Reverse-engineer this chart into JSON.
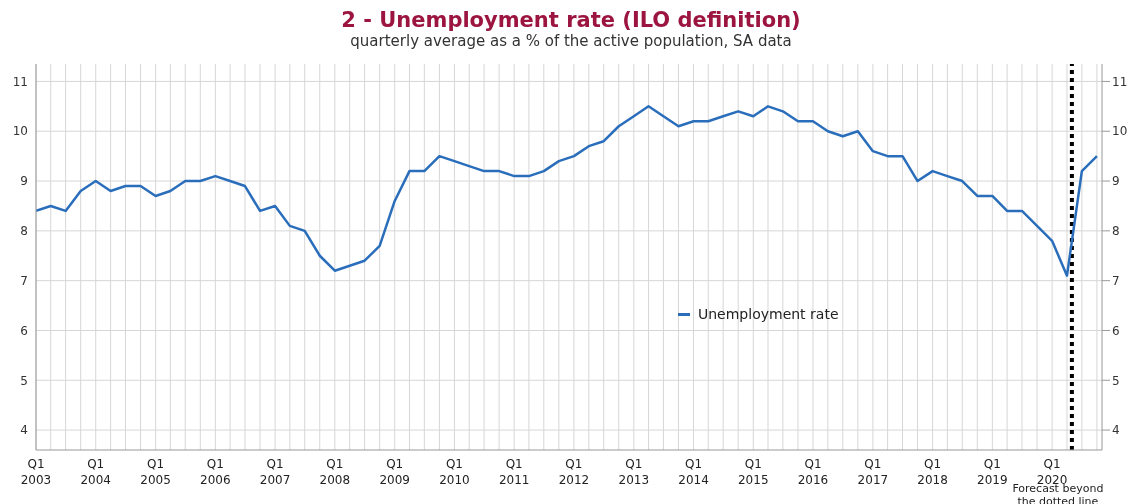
{
  "chart_data": {
    "type": "line",
    "title": "2 - Unemployment rate (ILO definition)",
    "subtitle": "quarterly average as a % of the active population, SA data",
    "x": [
      "2003-01",
      "2003-04",
      "2003-07",
      "2003-10",
      "2004-01",
      "2004-04",
      "2004-07",
      "2004-10",
      "2005-01",
      "2005-04",
      "2005-07",
      "2005-10",
      "2006-01",
      "2006-04",
      "2006-07",
      "2006-10",
      "2007-01",
      "2007-04",
      "2007-07",
      "2007-10",
      "2008-01",
      "2008-04",
      "2008-07",
      "2008-10",
      "2009-01",
      "2009-04",
      "2009-07",
      "2009-10",
      "2010-01",
      "2010-04",
      "2010-07",
      "2010-10",
      "2011-01",
      "2011-04",
      "2011-07",
      "2011-10",
      "2012-01",
      "2012-04",
      "2012-07",
      "2012-10",
      "2013-01",
      "2013-04",
      "2013-07",
      "2013-10",
      "2014-01",
      "2014-04",
      "2014-07",
      "2014-10",
      "2015-01",
      "2015-04",
      "2015-07",
      "2015-10",
      "2016-01",
      "2016-04",
      "2016-07",
      "2016-10",
      "2017-01",
      "2017-04",
      "2017-07",
      "2017-10",
      "2018-01",
      "2018-04",
      "2018-07",
      "2018-10",
      "2019-01",
      "2019-04",
      "2019-07",
      "2019-10",
      "2020-01",
      "2020-04",
      "2020-07",
      "2020-10"
    ],
    "series": [
      {
        "name": "Unemployment rate",
        "color": "#2a6ebb",
        "values": [
          8.4,
          8.5,
          8.4,
          8.8,
          9.0,
          8.8,
          8.9,
          8.9,
          8.7,
          8.8,
          9.0,
          9.0,
          9.1,
          9.0,
          8.9,
          8.4,
          8.5,
          8.1,
          8.0,
          7.5,
          7.2,
          7.3,
          7.4,
          7.7,
          8.6,
          9.2,
          9.2,
          9.5,
          9.4,
          9.3,
          9.2,
          9.2,
          9.1,
          9.1,
          9.2,
          9.4,
          9.5,
          9.7,
          9.8,
          10.1,
          10.3,
          10.5,
          10.3,
          10.1,
          10.2,
          10.2,
          10.3,
          10.4,
          10.3,
          10.5,
          10.4,
          10.2,
          10.2,
          10.0,
          9.9,
          10.0,
          9.6,
          9.5,
          9.5,
          9.0,
          9.2,
          9.1,
          9.0,
          8.7,
          8.7,
          8.4,
          8.4,
          8.1,
          7.8,
          7.1,
          9.2,
          9.5
        ]
      }
    ],
    "xlim": [
      "2003-01",
      "2020-11"
    ],
    "xticks": [
      {
        "value": "2003-01",
        "label": "Q1\n2003"
      },
      {
        "value": "2003-04",
        "label": null
      },
      {
        "value": "2003-07",
        "label": null
      },
      {
        "value": "2003-10",
        "label": null
      },
      {
        "value": "2004-01",
        "label": "Q1\n2004"
      },
      {
        "value": "2004-04",
        "label": null
      },
      {
        "value": "2004-07",
        "label": null
      },
      {
        "value": "2004-10",
        "label": null
      },
      {
        "value": "2005-01",
        "label": "Q1\n2005"
      },
      {
        "value": "2005-04",
        "label": null
      },
      {
        "value": "2005-07",
        "label": null
      },
      {
        "value": "2005-10",
        "label": null
      },
      {
        "value": "2006-01",
        "label": "Q1\n2006"
      },
      {
        "value": "2006-04",
        "label": null
      },
      {
        "value": "2006-07",
        "label": null
      },
      {
        "value": "2006-10",
        "label": null
      },
      {
        "value": "2007-01",
        "label": "Q1\n2007"
      },
      {
        "value": "2007-04",
        "label": null
      },
      {
        "value": "2007-07",
        "label": null
      },
      {
        "value": "2007-10",
        "label": null
      },
      {
        "value": "2008-01",
        "label": "Q1\n2008"
      },
      {
        "value": "2008-04",
        "label": null
      },
      {
        "value": "2008-07",
        "label": null
      },
      {
        "value": "2008-10",
        "label": null
      },
      {
        "value": "2009-01",
        "label": "Q1\n2009"
      },
      {
        "value": "2009-04",
        "label": null
      },
      {
        "value": "2009-07",
        "label": null
      },
      {
        "value": "2009-10",
        "label": null
      },
      {
        "value": "2010-01",
        "label": "Q1\n2010"
      },
      {
        "value": "2010-04",
        "label": null
      },
      {
        "value": "2010-07",
        "label": null
      },
      {
        "value": "2010-10",
        "label": null
      },
      {
        "value": "2011-01",
        "label": "Q1\n2011"
      },
      {
        "value": "2011-04",
        "label": null
      },
      {
        "value": "2011-07",
        "label": null
      },
      {
        "value": "2011-10",
        "label": null
      },
      {
        "value": "2012-01",
        "label": "Q1\n2012"
      },
      {
        "value": "2012-04",
        "label": null
      },
      {
        "value": "2012-07",
        "label": null
      },
      {
        "value": "2012-10",
        "label": null
      },
      {
        "value": "2013-01",
        "label": "Q1\n2013"
      },
      {
        "value": "2013-04",
        "label": null
      },
      {
        "value": "2013-07",
        "label": null
      },
      {
        "value": "2013-10",
        "label": null
      },
      {
        "value": "2014-01",
        "label": "Q1\n2014"
      },
      {
        "value": "2014-04",
        "label": null
      },
      {
        "value": "2014-07",
        "label": null
      },
      {
        "value": "2014-10",
        "label": null
      },
      {
        "value": "2015-01",
        "label": "Q1\n2015"
      },
      {
        "value": "2015-04",
        "label": null
      },
      {
        "value": "2015-07",
        "label": null
      },
      {
        "value": "2015-10",
        "label": null
      },
      {
        "value": "2016-01",
        "label": "Q1\n2016"
      },
      {
        "value": "2016-04",
        "label": null
      },
      {
        "value": "2016-07",
        "label": null
      },
      {
        "value": "2016-10",
        "label": null
      },
      {
        "value": "2017-01",
        "label": "Q1\n2017"
      },
      {
        "value": "2017-04",
        "label": null
      },
      {
        "value": "2017-07",
        "label": null
      },
      {
        "value": "2017-10",
        "label": null
      },
      {
        "value": "2018-01",
        "label": "Q1\n2018"
      },
      {
        "value": "2018-04",
        "label": null
      },
      {
        "value": "2018-07",
        "label": null
      },
      {
        "value": "2018-10",
        "label": null
      },
      {
        "value": "2019-01",
        "label": "Q1\n2019"
      },
      {
        "value": "2019-04",
        "label": null
      },
      {
        "value": "2019-07",
        "label": null
      },
      {
        "value": "2019-10",
        "label": null
      },
      {
        "value": "2020-01",
        "label": "Q1\n2020"
      },
      {
        "value": "2020-04",
        "label": null
      },
      {
        "value": "2020-07",
        "label": null
      },
      {
        "value": "2020-10",
        "label": null
      }
    ],
    "ylim": [
      3.6,
      11.35
    ],
    "yticks": [
      4,
      5,
      6,
      7,
      8,
      9,
      10,
      11
    ],
    "y2lim": [
      3.6,
      11.35
    ],
    "y2ticks": [
      4,
      5,
      6,
      7,
      8,
      9,
      10,
      11
    ],
    "ref_lines": [
      {
        "axis": "x",
        "value": "2020-05",
        "label": "Forecast beyond the dotted line",
        "color": "#000000",
        "line_style": "dotted"
      }
    ],
    "grid": true,
    "legend": "right"
  }
}
